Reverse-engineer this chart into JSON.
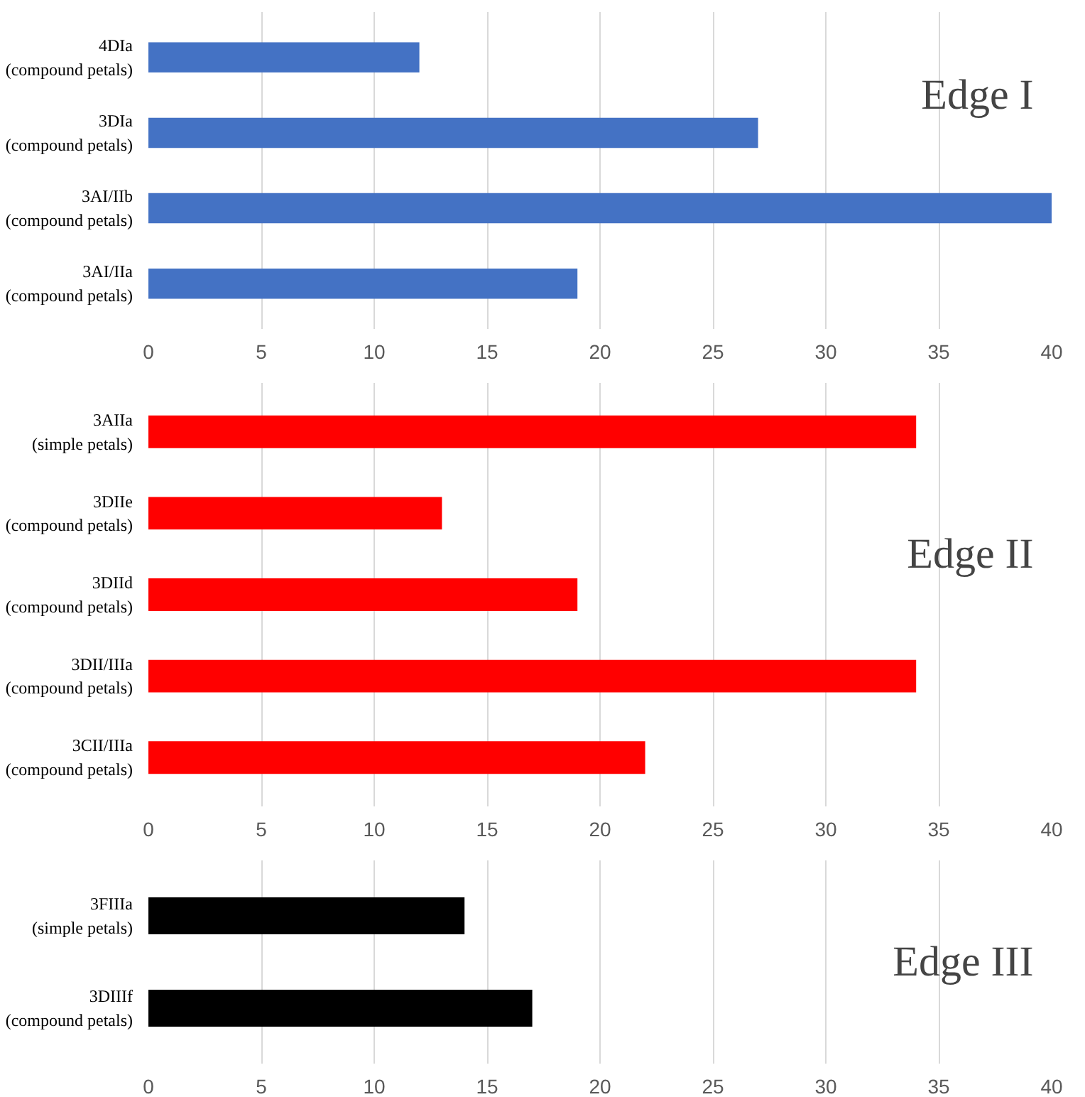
{
  "chart_data": [
    {
      "type": "bar",
      "orientation": "horizontal",
      "categories": [
        "4DIa\n(compound petals)",
        "3DIa\n(compound petals)",
        "3AI/IIb\n(compound petals)",
        "3AI/IIa\n(compound petals)"
      ],
      "series": [
        {
          "color": "#4472c4",
          "values": [
            12,
            27,
            40,
            19
          ]
        }
      ],
      "xlim": [
        0,
        40
      ],
      "xticks": [
        0,
        5,
        10,
        15,
        20,
        25,
        30,
        35,
        40
      ],
      "grid": "x",
      "annotations": [
        "Edge I"
      ]
    },
    {
      "type": "bar",
      "orientation": "horizontal",
      "categories": [
        "3AIIa\n(simple petals)",
        "3DIIe\n(compound petals)",
        "3DIId\n(compound petals)",
        "3DII/IIIa\n(compound petals)",
        "3CII/IIIa\n(compound petals)"
      ],
      "series": [
        {
          "color": "#ff0000",
          "values": [
            34,
            13,
            19,
            34,
            22
          ]
        }
      ],
      "xlim": [
        0,
        40
      ],
      "xticks": [
        0,
        5,
        10,
        15,
        20,
        25,
        30,
        35,
        40
      ],
      "grid": "x",
      "annotations": [
        "Edge II"
      ]
    },
    {
      "type": "bar",
      "orientation": "horizontal",
      "categories": [
        "3FIIIa\n(simple petals)",
        "3DIIIf\n(compound petals)"
      ],
      "series": [
        {
          "color": "#000000",
          "values": [
            14,
            17
          ]
        }
      ],
      "xlim": [
        0,
        40
      ],
      "xticks": [
        0,
        5,
        10,
        15,
        20,
        25,
        30,
        35,
        40
      ],
      "grid": "x",
      "annotations": [
        "Edge III"
      ]
    }
  ]
}
